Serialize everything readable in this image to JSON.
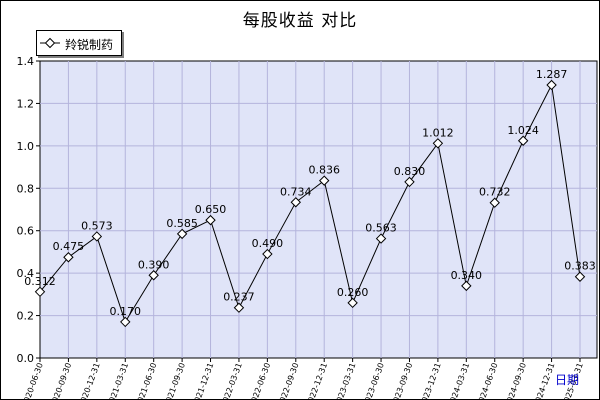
{
  "chart_data": {
    "type": "line",
    "title": "每股收益  对比",
    "xlabel": "日期",
    "ylabel": "",
    "ylim": [
      0,
      1.4
    ],
    "yticks": [
      "0.0",
      "0.2",
      "0.4",
      "0.6",
      "0.8",
      "1.0",
      "1.2",
      "1.4"
    ],
    "grid": true,
    "legend_position": "top-left",
    "categories": [
      "2020-06-30",
      "2020-09-30",
      "2020-12-31",
      "2021-03-31",
      "2021-06-30",
      "2021-09-30",
      "2021-12-31",
      "2022-03-31",
      "2022-06-30",
      "2022-09-30",
      "2022-12-31",
      "2023-03-31",
      "2023-06-30",
      "2023-09-30",
      "2023-12-31",
      "2024-03-31",
      "2024-06-30",
      "2024-09-30",
      "2024-12-31",
      "2025-03-31"
    ],
    "series": [
      {
        "name": "羚锐制药",
        "values": [
          0.312,
          0.475,
          0.573,
          0.17,
          0.39,
          0.585,
          0.65,
          0.237,
          0.49,
          0.734,
          0.836,
          0.26,
          0.563,
          0.83,
          1.012,
          0.34,
          0.732,
          1.024,
          1.287,
          0.383
        ],
        "labels": [
          "0.312",
          "0.475",
          "0.573",
          "0.170",
          "0.390",
          "0.585",
          "0.650",
          "0.237",
          "0.490",
          "0.734",
          "0.836",
          "0.260",
          "0.563",
          "0.830",
          "1.012",
          "0.340",
          "0.732",
          "1.024",
          "1.287",
          "0.383"
        ]
      }
    ],
    "colors": {
      "plot_background": "#e0e4f8",
      "gridline": "#b4b4dc",
      "line": "#000000",
      "marker_fill": "#ffffff",
      "xlabel_color": "#0000cc"
    }
  }
}
